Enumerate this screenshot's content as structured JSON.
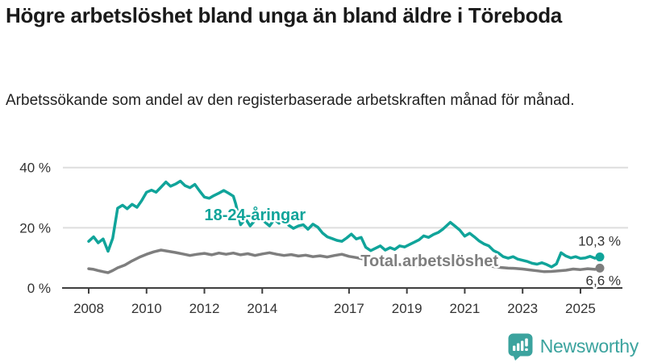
{
  "header": {},
  "chart_data": {
    "type": "line",
    "title": "Högre arbetslöshet bland unga än bland äldre i Töreboda",
    "subtitle": "Arbetssökande som andel av den registerbaserade arbetskraften månad för månad.",
    "unit": "%",
    "grid": "horizontal-only",
    "legend_position": "inline-labels",
    "xlim": [
      2007.5,
      2026.0
    ],
    "ylim": [
      0,
      45
    ],
    "y_ticks": [
      {
        "value": 0,
        "label": "0 %"
      },
      {
        "value": 20,
        "label": "20 %"
      },
      {
        "value": 40,
        "label": "40 %"
      }
    ],
    "x_ticks": [
      {
        "value": 2008,
        "label": "2008"
      },
      {
        "value": 2010,
        "label": "2010"
      },
      {
        "value": 2012,
        "label": "2012"
      },
      {
        "value": 2014,
        "label": "2014"
      },
      {
        "value": 2017,
        "label": "2017"
      },
      {
        "value": 2019,
        "label": "2019"
      },
      {
        "value": 2021,
        "label": "2021"
      },
      {
        "value": 2023,
        "label": "2023"
      },
      {
        "value": 2025,
        "label": "2025"
      }
    ],
    "series": [
      {
        "name": "18-24-åringar",
        "color": "#10a49a",
        "end_label": "10,3 %",
        "end_value": 10.3,
        "label_pos": {
          "x": 2012.0,
          "y": 22.5
        },
        "points": [
          [
            2008.0,
            15.5
          ],
          [
            2008.17,
            17.0
          ],
          [
            2008.33,
            15.0
          ],
          [
            2008.5,
            16.3
          ],
          [
            2008.67,
            12.2
          ],
          [
            2008.83,
            16.5
          ],
          [
            2009.0,
            26.5
          ],
          [
            2009.17,
            27.5
          ],
          [
            2009.33,
            26.3
          ],
          [
            2009.5,
            27.8
          ],
          [
            2009.67,
            26.8
          ],
          [
            2009.83,
            29.0
          ],
          [
            2010.0,
            31.8
          ],
          [
            2010.17,
            32.5
          ],
          [
            2010.33,
            31.8
          ],
          [
            2010.5,
            33.5
          ],
          [
            2010.67,
            35.2
          ],
          [
            2010.83,
            33.8
          ],
          [
            2011.0,
            34.5
          ],
          [
            2011.17,
            35.5
          ],
          [
            2011.33,
            34.0
          ],
          [
            2011.5,
            33.3
          ],
          [
            2011.67,
            34.4
          ],
          [
            2011.83,
            32.3
          ],
          [
            2012.0,
            30.2
          ],
          [
            2012.17,
            29.8
          ],
          [
            2012.33,
            30.7
          ],
          [
            2012.5,
            31.5
          ],
          [
            2012.67,
            32.4
          ],
          [
            2012.83,
            31.5
          ],
          [
            2013.0,
            30.5
          ],
          [
            2013.08,
            28.0
          ],
          [
            2013.25,
            21.0
          ],
          [
            2013.42,
            23.0
          ],
          [
            2013.58,
            20.6
          ],
          [
            2013.75,
            22.5
          ],
          [
            2013.92,
            23.5
          ],
          [
            2014.08,
            22.0
          ],
          [
            2014.25,
            20.6
          ],
          [
            2014.42,
            22.8
          ],
          [
            2014.58,
            21.5
          ],
          [
            2014.75,
            23.0
          ],
          [
            2014.92,
            20.8
          ],
          [
            2015.08,
            19.8
          ],
          [
            2015.25,
            20.6
          ],
          [
            2015.42,
            21.0
          ],
          [
            2015.58,
            19.5
          ],
          [
            2015.75,
            21.2
          ],
          [
            2015.92,
            20.2
          ],
          [
            2016.08,
            18.3
          ],
          [
            2016.25,
            17.0
          ],
          [
            2016.42,
            16.4
          ],
          [
            2016.58,
            15.8
          ],
          [
            2016.75,
            15.5
          ],
          [
            2016.92,
            16.6
          ],
          [
            2017.08,
            17.9
          ],
          [
            2017.25,
            16.3
          ],
          [
            2017.42,
            16.8
          ],
          [
            2017.58,
            13.5
          ],
          [
            2017.75,
            12.4
          ],
          [
            2017.92,
            13.2
          ],
          [
            2018.08,
            14.0
          ],
          [
            2018.25,
            12.6
          ],
          [
            2018.42,
            13.4
          ],
          [
            2018.58,
            12.8
          ],
          [
            2018.75,
            14.0
          ],
          [
            2018.92,
            13.6
          ],
          [
            2019.08,
            14.4
          ],
          [
            2019.25,
            15.2
          ],
          [
            2019.42,
            16.0
          ],
          [
            2019.58,
            17.3
          ],
          [
            2019.75,
            16.8
          ],
          [
            2019.92,
            17.8
          ],
          [
            2020.08,
            18.4
          ],
          [
            2020.25,
            19.6
          ],
          [
            2020.5,
            21.8
          ],
          [
            2020.67,
            20.5
          ],
          [
            2020.83,
            19.2
          ],
          [
            2021.0,
            17.2
          ],
          [
            2021.17,
            18.2
          ],
          [
            2021.33,
            17.0
          ],
          [
            2021.5,
            15.6
          ],
          [
            2021.67,
            14.6
          ],
          [
            2021.83,
            14.0
          ],
          [
            2022.0,
            12.4
          ],
          [
            2022.17,
            11.6
          ],
          [
            2022.33,
            10.4
          ],
          [
            2022.5,
            9.9
          ],
          [
            2022.67,
            10.4
          ],
          [
            2022.83,
            9.6
          ],
          [
            2023.0,
            9.2
          ],
          [
            2023.17,
            8.8
          ],
          [
            2023.33,
            8.2
          ],
          [
            2023.5,
            7.9
          ],
          [
            2023.67,
            8.4
          ],
          [
            2023.83,
            7.8
          ],
          [
            2024.0,
            7.0
          ],
          [
            2024.17,
            8.0
          ],
          [
            2024.33,
            11.7
          ],
          [
            2024.5,
            10.6
          ],
          [
            2024.67,
            10.0
          ],
          [
            2024.83,
            10.4
          ],
          [
            2025.0,
            9.8
          ],
          [
            2025.17,
            10.0
          ],
          [
            2025.33,
            10.5
          ],
          [
            2025.5,
            9.9
          ],
          [
            2025.67,
            10.3
          ]
        ]
      },
      {
        "name": "Total arbetslöshet",
        "color": "#7e7e7e",
        "end_label": "6,6 %",
        "end_value": 6.6,
        "label_pos": {
          "x": 2017.4,
          "y": 7.2
        },
        "points": [
          [
            2008.0,
            6.4
          ],
          [
            2008.17,
            6.2
          ],
          [
            2008.33,
            5.8
          ],
          [
            2008.5,
            5.4
          ],
          [
            2008.67,
            5.1
          ],
          [
            2008.83,
            5.8
          ],
          [
            2009.0,
            6.7
          ],
          [
            2009.25,
            7.6
          ],
          [
            2009.5,
            9.0
          ],
          [
            2009.75,
            10.2
          ],
          [
            2010.0,
            11.2
          ],
          [
            2010.25,
            12.0
          ],
          [
            2010.5,
            12.6
          ],
          [
            2010.75,
            12.2
          ],
          [
            2011.0,
            11.8
          ],
          [
            2011.25,
            11.3
          ],
          [
            2011.5,
            10.8
          ],
          [
            2011.75,
            11.2
          ],
          [
            2012.0,
            11.5
          ],
          [
            2012.25,
            11.0
          ],
          [
            2012.5,
            11.6
          ],
          [
            2012.75,
            11.2
          ],
          [
            2013.0,
            11.6
          ],
          [
            2013.25,
            11.0
          ],
          [
            2013.5,
            11.4
          ],
          [
            2013.75,
            10.8
          ],
          [
            2014.0,
            11.3
          ],
          [
            2014.25,
            11.7
          ],
          [
            2014.5,
            11.2
          ],
          [
            2014.75,
            10.8
          ],
          [
            2015.0,
            11.1
          ],
          [
            2015.25,
            10.6
          ],
          [
            2015.5,
            10.9
          ],
          [
            2015.75,
            10.4
          ],
          [
            2016.0,
            10.7
          ],
          [
            2016.25,
            10.3
          ],
          [
            2016.5,
            10.8
          ],
          [
            2016.75,
            11.2
          ],
          [
            2017.0,
            10.5
          ],
          [
            2017.25,
            10.1
          ],
          [
            2017.5,
            9.6
          ],
          [
            2017.75,
            9.2
          ],
          [
            2018.0,
            8.8
          ],
          [
            2018.25,
            8.5
          ],
          [
            2018.5,
            8.1
          ],
          [
            2018.75,
            7.8
          ],
          [
            2019.0,
            7.6
          ],
          [
            2019.25,
            7.4
          ],
          [
            2019.5,
            7.3
          ],
          [
            2019.75,
            7.6
          ],
          [
            2020.0,
            8.2
          ],
          [
            2020.25,
            9.2
          ],
          [
            2020.5,
            9.5
          ],
          [
            2020.75,
            9.2
          ],
          [
            2021.0,
            9.0
          ],
          [
            2021.25,
            8.5
          ],
          [
            2021.5,
            8.0
          ],
          [
            2021.75,
            7.5
          ],
          [
            2022.0,
            7.1
          ],
          [
            2022.25,
            6.8
          ],
          [
            2022.5,
            6.6
          ],
          [
            2022.75,
            6.5
          ],
          [
            2023.0,
            6.3
          ],
          [
            2023.25,
            6.0
          ],
          [
            2023.5,
            5.7
          ],
          [
            2023.75,
            5.4
          ],
          [
            2024.0,
            5.5
          ],
          [
            2024.25,
            5.7
          ],
          [
            2024.5,
            5.9
          ],
          [
            2024.75,
            6.3
          ],
          [
            2025.0,
            6.1
          ],
          [
            2025.25,
            6.4
          ],
          [
            2025.5,
            6.2
          ],
          [
            2025.67,
            6.6
          ]
        ]
      }
    ]
  },
  "footer": {
    "brand": "Newsworthy"
  }
}
